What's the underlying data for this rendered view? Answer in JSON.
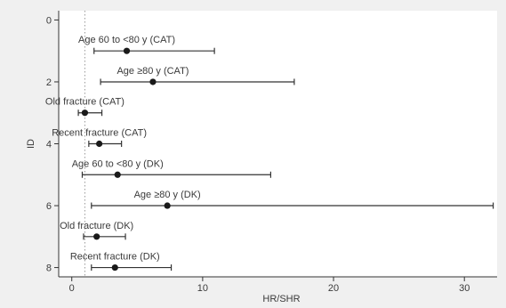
{
  "chart_data": {
    "type": "scatter",
    "subtype": "forest-plot",
    "title": "",
    "xlabel": "HR/SHR",
    "ylabel": "ID",
    "xlim": [
      -1,
      32.5
    ],
    "ylim": [
      -0.3,
      8.3
    ],
    "y_inverted": true,
    "xticks": [
      0,
      10,
      20,
      30
    ],
    "yticks": [
      0,
      2,
      4,
      6,
      8
    ],
    "reference_line_x": 1,
    "grid": false,
    "colors": {
      "background": "#f0f0f0",
      "plot_area": "#ffffff",
      "marker": "#1a1a1a",
      "line": "#333333",
      "reference_line": "#9a9a9a",
      "text": "#3a3a3a"
    },
    "points": [
      {
        "id": 1,
        "label": "Age 60 to <80 y (CAT)",
        "estimate": 4.2,
        "ci_lower": 1.7,
        "ci_upper": 10.9
      },
      {
        "id": 2,
        "label": "Age ≥80 y (CAT)",
        "estimate": 6.2,
        "ci_lower": 2.2,
        "ci_upper": 17.0
      },
      {
        "id": 3,
        "label": "Old fracture (CAT)",
        "estimate": 1.0,
        "ci_lower": 0.5,
        "ci_upper": 2.3
      },
      {
        "id": 4,
        "label": "Recent fracture (CAT)",
        "estimate": 2.1,
        "ci_lower": 1.3,
        "ci_upper": 3.8
      },
      {
        "id": 5,
        "label": "Age 60 to <80 y (DK)",
        "estimate": 3.5,
        "ci_lower": 0.8,
        "ci_upper": 15.2
      },
      {
        "id": 6,
        "label": "Age ≥80 y (DK)",
        "estimate": 7.3,
        "ci_lower": 1.5,
        "ci_upper": 32.2
      },
      {
        "id": 7,
        "label": "Old fracture (DK)",
        "estimate": 1.9,
        "ci_lower": 0.9,
        "ci_upper": 4.1
      },
      {
        "id": 8,
        "label": "Recent fracture (DK)",
        "estimate": 3.3,
        "ci_lower": 1.5,
        "ci_upper": 7.6
      }
    ]
  }
}
